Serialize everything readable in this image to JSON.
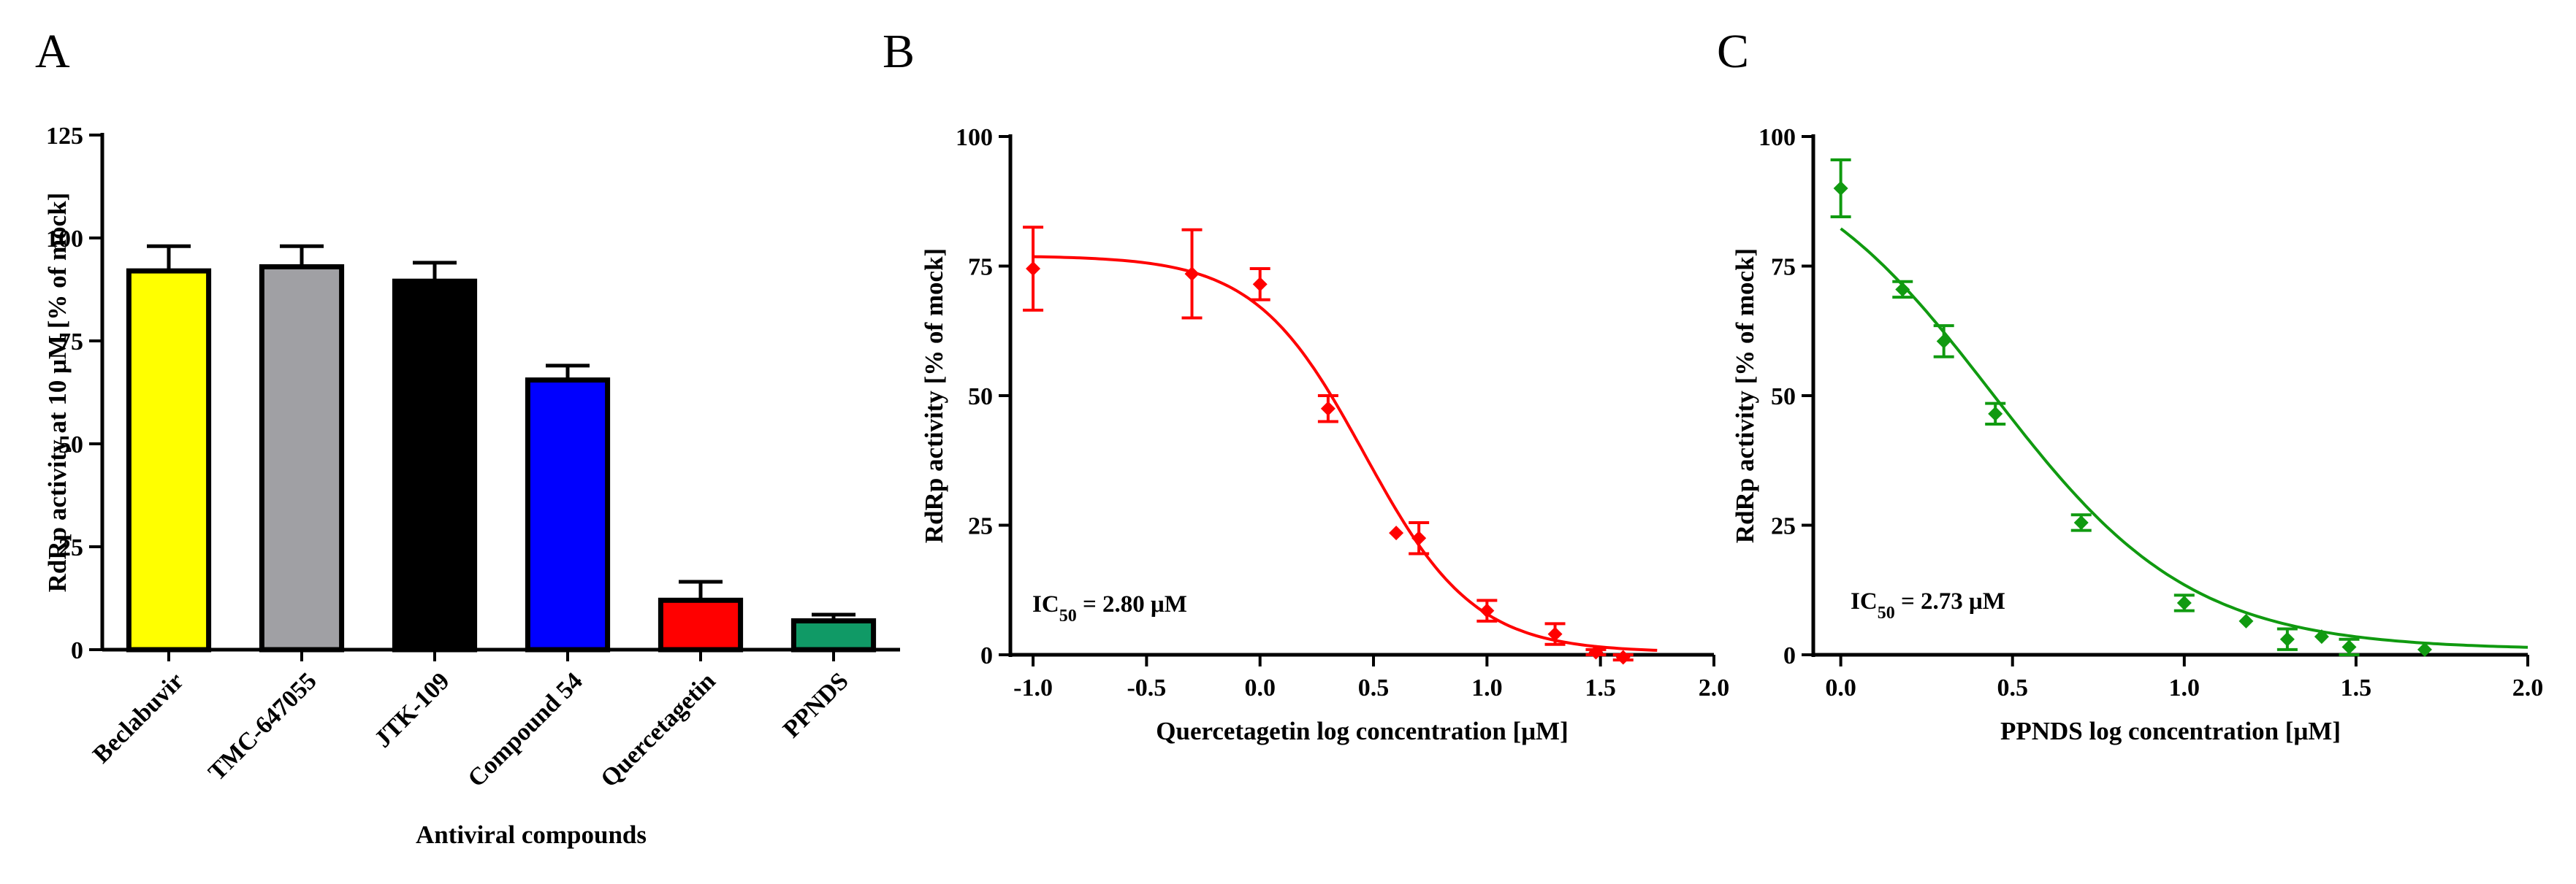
{
  "panels": {
    "A": "A",
    "B": "B",
    "C": "C"
  },
  "chart_data": [
    {
      "type": "bar",
      "panel": "A",
      "title": "",
      "xlabel": "Antiviral compounds",
      "ylabel": "RdRp activity at 10 μM [% of mock]",
      "ylim": [
        0,
        125
      ],
      "yticks": [
        0,
        25,
        50,
        75,
        100,
        125
      ],
      "categories": [
        "Beclabuvir",
        "TMC-647055",
        "JTK-109",
        "Compound 54",
        "Quercetagetin",
        "PPNDS"
      ],
      "values": [
        92,
        93,
        89.5,
        65.5,
        12,
        7
      ],
      "errors": [
        6,
        5,
        4.5,
        3.5,
        4.5,
        1.5
      ],
      "colors": [
        "#ffff00",
        "#a0a0a4",
        "#000000",
        "#0000ff",
        "#ff0000",
        "#109a66"
      ]
    },
    {
      "type": "scatter",
      "panel": "B",
      "xlabel": "Quercetagetin log concentration [μM]",
      "ylabel": "RdRp activity [% of mock]",
      "xlim": [
        -1.1,
        2.0
      ],
      "ylim": [
        0,
        100
      ],
      "xticks": [
        -1.0,
        -0.5,
        0.0,
        0.5,
        1.0,
        1.5,
        2.0
      ],
      "xtick_labels": [
        "-1.0",
        "-0.5",
        "0.0",
        "0.5",
        "1.0",
        "1.5",
        "2.0"
      ],
      "yticks": [
        0,
        25,
        50,
        75,
        100
      ],
      "color": "#ff0000",
      "annotation": {
        "prefix": "IC",
        "sub": "50",
        "suffix": " = 2.80 μM"
      },
      "points": [
        {
          "x": -1.0,
          "y": 74.5,
          "err": 8.0
        },
        {
          "x": -0.3,
          "y": 73.5,
          "err": 8.5
        },
        {
          "x": 0.0,
          "y": 71.5,
          "err": 3.0
        },
        {
          "x": 0.3,
          "y": 47.5,
          "err": 2.5
        },
        {
          "x": 0.6,
          "y": 23.5,
          "err": 0
        },
        {
          "x": 0.7,
          "y": 22.5,
          "err": 3.0
        },
        {
          "x": 1.0,
          "y": 8.5,
          "err": 2.0
        },
        {
          "x": 1.3,
          "y": 4.0,
          "err": 2.0
        },
        {
          "x": 1.48,
          "y": 0.5,
          "err": 0.5
        },
        {
          "x": 1.6,
          "y": -0.5,
          "err": 0.5
        }
      ],
      "fit": {
        "model": "logistic",
        "top": 77,
        "bottom": 0.5,
        "logIC50": 0.46,
        "hill": 1.8,
        "x_range": [
          -1.0,
          1.75
        ]
      }
    },
    {
      "type": "scatter",
      "panel": "C",
      "xlabel": "PPNDS log concentration [μM]",
      "ylabel": "RdRp activity [% of mock]",
      "xlim": [
        -0.08,
        2.0
      ],
      "ylim": [
        0,
        100
      ],
      "xticks": [
        0.0,
        0.5,
        1.0,
        1.5,
        2.0
      ],
      "xtick_labels": [
        "0.0",
        "0.5",
        "1.0",
        "1.5",
        "2.0"
      ],
      "yticks": [
        0,
        25,
        50,
        75,
        100
      ],
      "color": "#109a10",
      "annotation": {
        "prefix": "IC",
        "sub": "50",
        "suffix": " = 2.73 μM"
      },
      "points": [
        {
          "x": 0.0,
          "y": 90.0,
          "err": 5.5
        },
        {
          "x": 0.18,
          "y": 70.5,
          "err": 1.5
        },
        {
          "x": 0.3,
          "y": 60.5,
          "err": 3.0
        },
        {
          "x": 0.45,
          "y": 46.5,
          "err": 2.0
        },
        {
          "x": 0.7,
          "y": 25.5,
          "err": 1.5
        },
        {
          "x": 1.0,
          "y": 10.0,
          "err": 1.5
        },
        {
          "x": 1.18,
          "y": 6.5,
          "err": 0
        },
        {
          "x": 1.3,
          "y": 3.0,
          "err": 2.0
        },
        {
          "x": 1.4,
          "y": 3.5,
          "err": 0
        },
        {
          "x": 1.48,
          "y": 1.5,
          "err": 1.5
        },
        {
          "x": 1.7,
          "y": 1.0,
          "err": 0
        }
      ],
      "fit": {
        "model": "logistic",
        "top": 100,
        "bottom": 1,
        "logIC50": 0.44,
        "hill": 1.5,
        "x_range": [
          0.0,
          2.0
        ]
      }
    }
  ]
}
